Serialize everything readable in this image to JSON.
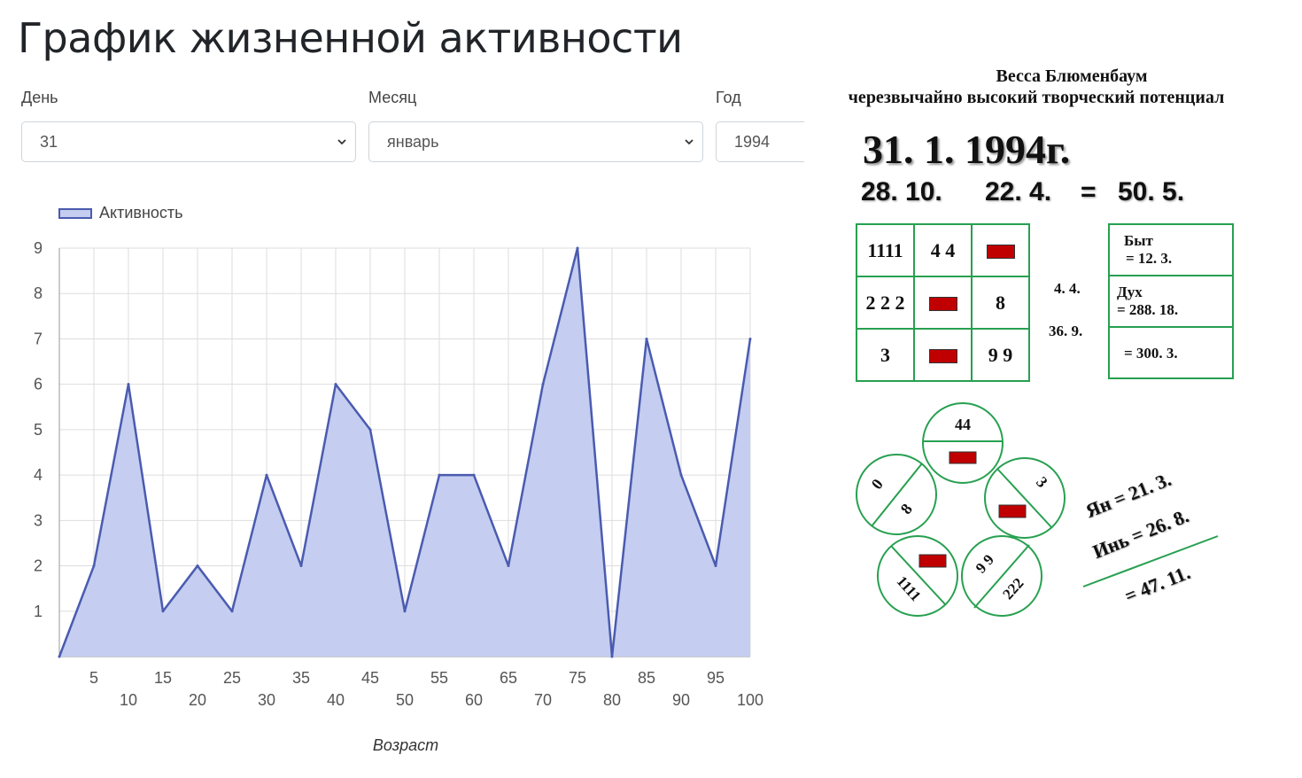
{
  "page": {
    "title": "График жизненной активности"
  },
  "form": {
    "day": {
      "label": "День",
      "value": "31"
    },
    "month": {
      "label": "Месяц",
      "value": "январь"
    },
    "year": {
      "label": "Год",
      "value": "1994"
    }
  },
  "chart_data": {
    "type": "area",
    "legend": "Активность",
    "xlabel": "Возраст",
    "x": [
      0,
      5,
      10,
      15,
      20,
      25,
      30,
      35,
      40,
      45,
      50,
      55,
      60,
      65,
      70,
      75,
      80,
      85,
      90,
      95,
      100
    ],
    "values": [
      0,
      2,
      6,
      1,
      2,
      1,
      4,
      2,
      6,
      5,
      1,
      4,
      4,
      2,
      6,
      9,
      0,
      7,
      4,
      2,
      7
    ],
    "ylim": [
      0,
      9
    ],
    "yticks": [
      1,
      2,
      3,
      4,
      5,
      6,
      7,
      8,
      9
    ],
    "xticks_upper": [
      5,
      15,
      25,
      35,
      45,
      55,
      65,
      75,
      85,
      95
    ],
    "xticks_lower": [
      10,
      20,
      30,
      40,
      50,
      60,
      70,
      80,
      90,
      100
    ],
    "grid": true,
    "legend_position": "top-left",
    "colors": {
      "line": "#4a5bb0",
      "fill": "#c5cdf0"
    }
  },
  "panel": {
    "name": "Весса Блюменбаум",
    "subtitle": "черезвычайно высокий творческий потенциал",
    "date": "31. 1. 1994г.",
    "sum1": "28. 10.",
    "sum2": "22. 4.",
    "equals": "=",
    "sum3": "50. 5.",
    "grid": [
      [
        "1111",
        "4 4",
        ""
      ],
      [
        "2 2 2",
        "",
        "8"
      ],
      [
        "3",
        "",
        "9 9"
      ]
    ],
    "mid1": "4. 4.",
    "mid2": "36. 9.",
    "byt_label": "Быт",
    "byt_value": "= 12. 3.",
    "duh_label": "Дух",
    "duh_value": "= 288. 18.",
    "total_value": "= 300. 3.",
    "circle_top": "44",
    "circle_left_a": "0",
    "circle_left_b": "8",
    "circle_right": "3",
    "circle_bl": "1111",
    "circle_br_a": "9 9",
    "circle_br_b": "222",
    "yan": "Ян = 21. 3.",
    "yin": "Инь = 26. 8.",
    "yy_total": "= 47. 11.",
    "colors": {
      "green": "#27a050",
      "red": "#c00000"
    }
  }
}
